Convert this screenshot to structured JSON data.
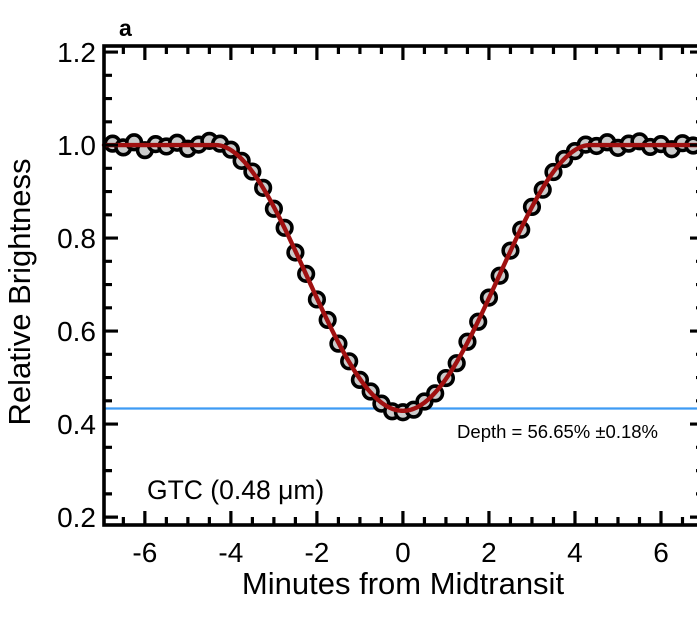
{
  "figure": {
    "panel_label": "a",
    "instrument_label": "GTC  (0.48 μm)",
    "depth_annotation": "Depth = 56.65% ±0.18%"
  },
  "chart_data": {
    "type": "scatter",
    "title": "",
    "xlabel": "Minutes from Midtransit",
    "ylabel": "Relative Brightness",
    "xlim": [
      -6.95,
      7.0
    ],
    "ylim": [
      0.183,
      1.213
    ],
    "x_major_ticks": [
      -6,
      -4,
      -2,
      0,
      2,
      4,
      6
    ],
    "x_minor_step": 0.5,
    "y_major_ticks": [
      0.2,
      0.4,
      0.6,
      0.8,
      1.0,
      1.2
    ],
    "y_minor_step": 0.05,
    "grid": false,
    "legend": "none",
    "depth_line_value": 0.4335,
    "colors": {
      "data_point_fill": "#cbcbcb",
      "data_point_stroke": "#000000",
      "model_line": "#a01010",
      "depth_line": "#3e9bf4",
      "panel_label": "#4d4d4d",
      "axis": "#000000"
    },
    "model_fit": {
      "description": "transit model: flux = 1 - (1 - min_flux) * cos(pi*t/(2*half_width_min))^exponent for |t| < half_width_min, else 1",
      "min_flux": 0.4285,
      "half_width_min": 4.35,
      "exponent": 1.92
    },
    "series": [
      {
        "name": "GTC 0.48 μm photometry",
        "x": [
          -6.75,
          -6.5,
          -6.25,
          -6.0,
          -5.75,
          -5.5,
          -5.25,
          -5.0,
          -4.75,
          -4.5,
          -4.25,
          -4.0,
          -3.75,
          -3.5,
          -3.25,
          -3.0,
          -2.75,
          -2.5,
          -2.25,
          -2.0,
          -1.75,
          -1.5,
          -1.25,
          -1.0,
          -0.75,
          -0.5,
          -0.25,
          0.0,
          0.25,
          0.5,
          0.75,
          1.0,
          1.25,
          1.5,
          1.75,
          2.0,
          2.25,
          2.5,
          2.75,
          3.0,
          3.25,
          3.5,
          3.75,
          4.0,
          4.25,
          4.5,
          4.75,
          5.0,
          5.25,
          5.5,
          5.75,
          6.0,
          6.25,
          6.5,
          6.75
        ],
        "y": [
          1.003,
          0.995,
          1.006,
          0.989,
          1.002,
          0.997,
          1.005,
          0.992,
          1.001,
          1.009,
          1.003,
          0.99,
          0.966,
          0.943,
          0.908,
          0.863,
          0.822,
          0.769,
          0.723,
          0.668,
          0.624,
          0.573,
          0.535,
          0.495,
          0.47,
          0.444,
          0.4275,
          0.4255,
          0.431,
          0.4485,
          0.466,
          0.499,
          0.531,
          0.577,
          0.62,
          0.672,
          0.719,
          0.773,
          0.818,
          0.867,
          0.904,
          0.942,
          0.97,
          0.987,
          1.001,
          0.998,
          1.006,
          0.994,
          1.003,
          1.008,
          0.996,
          1.002,
          0.991,
          1.004,
          0.999
        ]
      }
    ]
  }
}
